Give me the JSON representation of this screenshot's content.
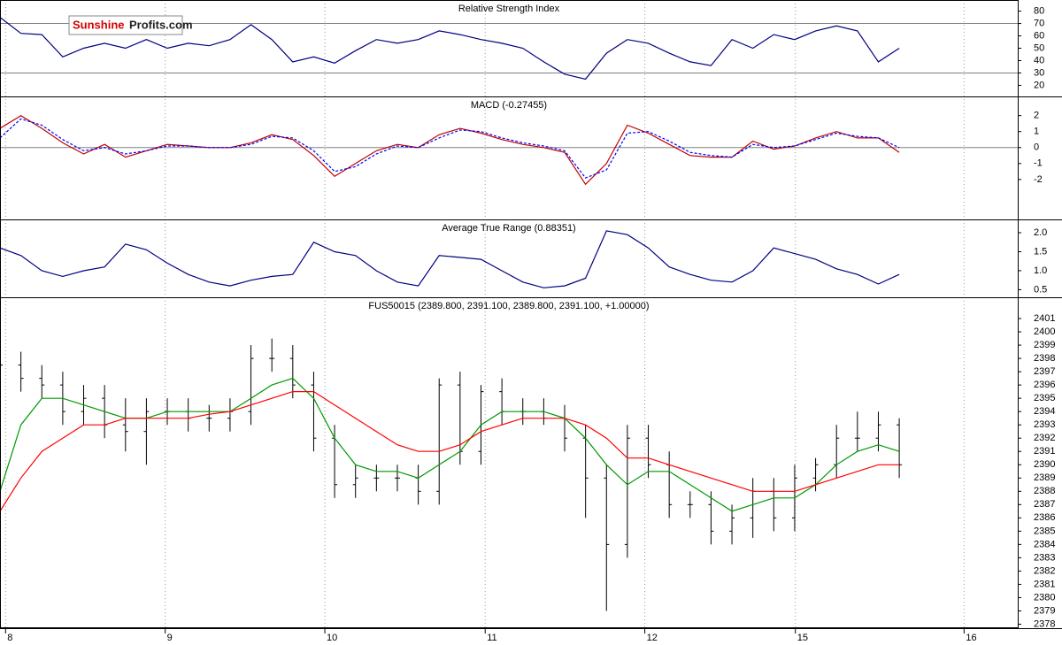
{
  "logo": {
    "brand": "Sunshine",
    "suffix": "Profits.com"
  },
  "chart_data": [
    {
      "type": "line",
      "title": "Relative Strength Index",
      "x": [
        0,
        3,
        6,
        9,
        12,
        15,
        18,
        21,
        24,
        27,
        30,
        33,
        36,
        39,
        42,
        45,
        48,
        51,
        54,
        57,
        60,
        63,
        66,
        69,
        72,
        75,
        78,
        81,
        84,
        87,
        90,
        93,
        96,
        99,
        102,
        105,
        108,
        111,
        114,
        117,
        120,
        123,
        126,
        129
      ],
      "xlim": [
        0,
        146
      ],
      "ylim": [
        11,
        89
      ],
      "yticks": [
        20,
        30,
        40,
        50,
        60,
        70,
        80
      ],
      "ref_lines": [
        30,
        70
      ],
      "series": [
        {
          "color": "#000080",
          "values": [
            75,
            62,
            61,
            43,
            50,
            54,
            50,
            57,
            50,
            54,
            52,
            57,
            69,
            57,
            39,
            43,
            38,
            48,
            57,
            54,
            57,
            64,
            61,
            57,
            54,
            50,
            39,
            29,
            25,
            46,
            57,
            54,
            46,
            39,
            36,
            57,
            50,
            61,
            57,
            64,
            68,
            64,
            39,
            50
          ]
        }
      ]
    },
    {
      "type": "line",
      "title": "MACD (-0.27455)",
      "x": [
        0,
        3,
        6,
        9,
        12,
        15,
        18,
        21,
        24,
        27,
        30,
        33,
        36,
        39,
        42,
        45,
        48,
        51,
        54,
        57,
        60,
        63,
        66,
        69,
        72,
        75,
        78,
        81,
        84,
        87,
        90,
        93,
        96,
        99,
        102,
        105,
        108,
        111,
        114,
        117,
        120,
        123,
        126,
        129
      ],
      "xlim": [
        0,
        146
      ],
      "ylim": [
        -4.5,
        3.2
      ],
      "yticks": [
        2,
        1,
        0,
        -1,
        -2
      ],
      "ref_lines": [
        0
      ],
      "series": [
        {
          "color": "#c00000",
          "values": [
            1.2,
            2.0,
            1.2,
            0.3,
            -0.4,
            0.2,
            -0.6,
            -0.2,
            0.2,
            0.1,
            0.0,
            0.0,
            0.3,
            0.8,
            0.5,
            -0.5,
            -1.8,
            -1.0,
            -0.2,
            0.2,
            0.0,
            0.8,
            1.2,
            0.9,
            0.5,
            0.2,
            0.0,
            -0.3,
            -2.3,
            -1.0,
            1.4,
            0.9,
            0.2,
            -0.5,
            -0.6,
            -0.6,
            0.4,
            -0.1,
            0.1,
            0.6,
            1.0,
            0.6,
            0.6,
            -0.3
          ]
        },
        {
          "color": "#0000ff",
          "dashed": true,
          "values": [
            0.6,
            1.8,
            1.4,
            0.5,
            -0.2,
            0.0,
            -0.4,
            -0.2,
            0.1,
            0.1,
            0.0,
            0.0,
            0.2,
            0.7,
            0.6,
            -0.2,
            -1.5,
            -1.2,
            -0.4,
            0.1,
            0.0,
            0.6,
            1.1,
            1.0,
            0.6,
            0.3,
            0.1,
            -0.2,
            -1.9,
            -1.4,
            0.9,
            1.0,
            0.4,
            -0.3,
            -0.5,
            -0.6,
            0.2,
            0.0,
            0.1,
            0.5,
            0.9,
            0.7,
            0.6,
            0.0
          ]
        }
      ]
    },
    {
      "type": "line",
      "title": "Average True Range (0.88351)",
      "x": [
        0,
        3,
        6,
        9,
        12,
        15,
        18,
        21,
        24,
        27,
        30,
        33,
        36,
        39,
        42,
        45,
        48,
        51,
        54,
        57,
        60,
        63,
        66,
        69,
        72,
        75,
        78,
        81,
        84,
        87,
        90,
        93,
        96,
        99,
        102,
        105,
        108,
        111,
        114,
        117,
        120,
        123,
        126,
        129
      ],
      "xlim": [
        0,
        146
      ],
      "ylim": [
        0.3,
        2.35
      ],
      "yticks": [
        {
          "value": 2,
          "label": "2.0"
        },
        1.5,
        {
          "value": 1,
          "label": "1.0"
        },
        0.5
      ],
      "series": [
        {
          "color": "#000080",
          "values": [
            1.6,
            1.4,
            1.0,
            0.85,
            1.0,
            1.1,
            1.7,
            1.55,
            1.2,
            0.9,
            0.7,
            0.6,
            0.75,
            0.85,
            0.9,
            1.75,
            1.5,
            1.4,
            1.0,
            0.7,
            0.6,
            1.4,
            1.35,
            1.3,
            1.0,
            0.7,
            0.55,
            0.6,
            0.8,
            2.05,
            1.95,
            1.6,
            1.1,
            0.9,
            0.75,
            0.7,
            1.0,
            1.6,
            1.45,
            1.3,
            1.05,
            0.9,
            0.65,
            0.9
          ]
        }
      ]
    },
    {
      "type": "ohlc",
      "title": "FUS50015 (2389.800, 2391.100, 2389.800, 2391.100, +1.00000)",
      "x": [
        0,
        3,
        6,
        9,
        12,
        15,
        18,
        21,
        24,
        27,
        30,
        33,
        36,
        39,
        42,
        45,
        48,
        51,
        54,
        57,
        60,
        63,
        66,
        69,
        72,
        75,
        78,
        81,
        84,
        87,
        90,
        93,
        96,
        99,
        102,
        105,
        108,
        111,
        114,
        117,
        120,
        123,
        126,
        129
      ],
      "xlim": [
        0,
        146
      ],
      "ylim": [
        2377.7,
        2402.6
      ],
      "xticks": [
        {
          "value": 0.8,
          "label": "8"
        },
        {
          "value": 23.7,
          "label": "9"
        },
        {
          "value": 46.6,
          "label": "10"
        },
        {
          "value": 69.6,
          "label": "11"
        },
        {
          "value": 92.5,
          "label": "12"
        },
        {
          "value": 114.1,
          "label": "15"
        },
        {
          "value": 138.3,
          "label": "16"
        }
      ],
      "yticks": [
        2378,
        2379,
        2380,
        2381,
        2382,
        2383,
        2384,
        2385,
        2386,
        2387,
        2388,
        2389,
        2390,
        2391,
        2392,
        2393,
        2394,
        2395,
        2396,
        2397,
        2398,
        2399,
        2400,
        2401
      ],
      "color": "#000000",
      "open": [
        2396.5,
        2397.5,
        2396.5,
        2396,
        2394,
        2395,
        2393,
        2392.5,
        2394,
        2394,
        2393.5,
        2393.5,
        2394,
        2398,
        2398,
        2396,
        2392,
        2388.5,
        2389,
        2389,
        2389,
        2388,
        2396,
        2391,
        2395.5,
        2394,
        2394,
        2393.5,
        2392,
        2389,
        2384,
        2392,
        2390,
        2387,
        2387,
        2385,
        2386,
        2388,
        2386,
        2389,
        2390,
        2392,
        2392,
        2393
      ],
      "high": [
        2399,
        2398.5,
        2397.5,
        2397,
        2396,
        2396,
        2395,
        2395,
        2395,
        2395,
        2394.5,
        2395,
        2399,
        2399.5,
        2399,
        2397,
        2393,
        2390,
        2390,
        2390,
        2390,
        2396.5,
        2397,
        2396,
        2396.5,
        2395,
        2395,
        2394.5,
        2393,
        2390,
        2393,
        2393,
        2391,
        2388,
        2388,
        2387,
        2389,
        2389,
        2390,
        2390.5,
        2393,
        2394,
        2394,
        2393.5
      ],
      "low": [
        2395,
        2395.5,
        2395,
        2393,
        2393,
        2392,
        2391,
        2390,
        2393,
        2392.5,
        2392.5,
        2392.5,
        2393,
        2397,
        2395,
        2391,
        2387.5,
        2387.5,
        2388,
        2388,
        2387,
        2387,
        2390,
        2390,
        2393,
        2393,
        2393,
        2391,
        2386,
        2379,
        2383,
        2389,
        2386,
        2386,
        2384,
        2384,
        2384.5,
        2385,
        2385,
        2388,
        2389,
        2391,
        2391,
        2389
      ],
      "close": [
        2397.5,
        2396.5,
        2396,
        2394,
        2395,
        2393,
        2392.5,
        2394,
        2394,
        2393.5,
        2393.5,
        2394,
        2398,
        2398,
        2396,
        2392,
        2388.5,
        2389,
        2389,
        2389,
        2388,
        2396,
        2391,
        2395.5,
        2394,
        2394,
        2393.5,
        2392,
        2389,
        2384,
        2392,
        2390,
        2387,
        2387,
        2385,
        2386,
        2388,
        2386,
        2389,
        2390,
        2392,
        2392,
        2393,
        2390
      ],
      "series": [
        {
          "color": "#009900",
          "values": [
            2388,
            2393,
            2395,
            2395,
            2394.5,
            2394,
            2393.5,
            2393.5,
            2394,
            2394,
            2394,
            2394,
            2395,
            2396,
            2396.5,
            2395,
            2392,
            2390,
            2389.5,
            2389.5,
            2389,
            2390,
            2391,
            2393,
            2394,
            2394,
            2394,
            2393.5,
            2392,
            2390,
            2388.5,
            2389.5,
            2389.5,
            2388.5,
            2387.5,
            2386.5,
            2387,
            2387.5,
            2387.5,
            2388.5,
            2390,
            2391,
            2391.5,
            2391
          ]
        },
        {
          "color": "#ff0000",
          "values": [
            2386.5,
            2389,
            2391,
            2392,
            2393,
            2393,
            2393.5,
            2393.5,
            2393.5,
            2393.5,
            2393.8,
            2394,
            2394.5,
            2395,
            2395.5,
            2395.5,
            2394.5,
            2393.5,
            2392.5,
            2391.5,
            2391,
            2391,
            2391.5,
            2392.5,
            2393,
            2393.5,
            2393.5,
            2393.5,
            2393,
            2392,
            2390.5,
            2390.5,
            2390,
            2389.5,
            2389,
            2388.5,
            2388,
            2388,
            2388,
            2388.5,
            2389,
            2389.5,
            2390,
            2390
          ]
        }
      ]
    }
  ]
}
